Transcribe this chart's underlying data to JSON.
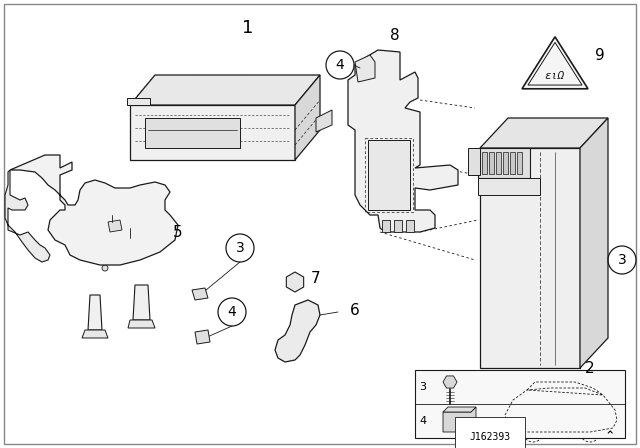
{
  "background_color": "#ffffff",
  "line_color": "#1a1a1a",
  "border_color": "#888888",
  "diagram_id": "J162393",
  "fig_width": 6.4,
  "fig_height": 4.48,
  "dpi": 100
}
